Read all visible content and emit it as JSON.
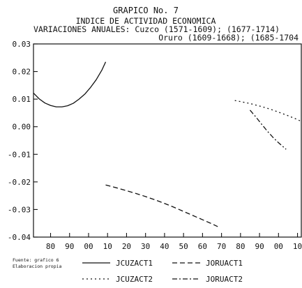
{
  "chart_data": {
    "type": "line",
    "title": "GRAPICO No. 7",
    "subtitle": "INDICE DE ACTIVIDAD ECONOMICA",
    "subtitle_lines": [
      "VARIACIONES ANUALES: Cuzco (1571-1609); (1677-1714)",
      "Oruro (1609-1668); (1685-1704"
    ],
    "xlabel": "",
    "ylabel": "",
    "xlim": [
      1571,
      1712
    ],
    "ylim": [
      -0.04,
      0.03
    ],
    "x_ticks": [
      1580,
      1590,
      1600,
      1610,
      1620,
      1630,
      1640,
      1650,
      1660,
      1670,
      1680,
      1690,
      1700,
      1710
    ],
    "x_tick_labels": [
      "80",
      "90",
      "00",
      "10",
      "20",
      "30",
      "40",
      "50",
      "60",
      "70",
      "80",
      "90",
      "00",
      "10"
    ],
    "y_ticks": [
      -0.04,
      -0.03,
      -0.02,
      -0.01,
      0.0,
      0.01,
      0.02,
      0.03
    ],
    "y_tick_labels": [
      "-0.04",
      "-0.03",
      "-0.02",
      "-0.01",
      "0.00",
      "0.01",
      "0.02",
      "0.03"
    ],
    "grid": false,
    "legend_position": "bottom",
    "source_note": [
      "Fuente: grafico 6",
      "Elaboracion propia"
    ],
    "series": [
      {
        "name": "JCUZACT1",
        "style": "solid",
        "x": [
          1571,
          1574,
          1577,
          1580,
          1583,
          1586,
          1589,
          1592,
          1595,
          1598,
          1601,
          1604,
          1607,
          1609
        ],
        "y": [
          0.0122,
          0.0101,
          0.0086,
          0.0077,
          0.0072,
          0.0072,
          0.0076,
          0.0085,
          0.01,
          0.0118,
          0.0142,
          0.017,
          0.0205,
          0.0235
        ]
      },
      {
        "name": "JORUACT1",
        "style": "dashed",
        "x": [
          1609,
          1615,
          1620,
          1625,
          1630,
          1635,
          1640,
          1645,
          1650,
          1655,
          1660,
          1665,
          1668
        ],
        "y": [
          -0.0211,
          -0.0222,
          -0.0232,
          -0.0242,
          -0.0253,
          -0.0265,
          -0.0278,
          -0.0292,
          -0.0307,
          -0.0322,
          -0.0337,
          -0.0352,
          -0.0362
        ]
      },
      {
        "name": "JCUZACT2",
        "style": "dotted",
        "x": [
          1677,
          1680,
          1685,
          1690,
          1695,
          1700,
          1705,
          1710,
          1712
        ],
        "y": [
          0.0095,
          0.0091,
          0.0084,
          0.0075,
          0.0065,
          0.0053,
          0.004,
          0.0026,
          0.0019
        ]
      },
      {
        "name": "JORUACT2",
        "style": "dashdot",
        "x": [
          1685,
          1688,
          1691,
          1694,
          1697,
          1700,
          1704
        ],
        "y": [
          0.006,
          0.0036,
          0.001,
          -0.0015,
          -0.0038,
          -0.0058,
          -0.0082
        ]
      }
    ]
  }
}
